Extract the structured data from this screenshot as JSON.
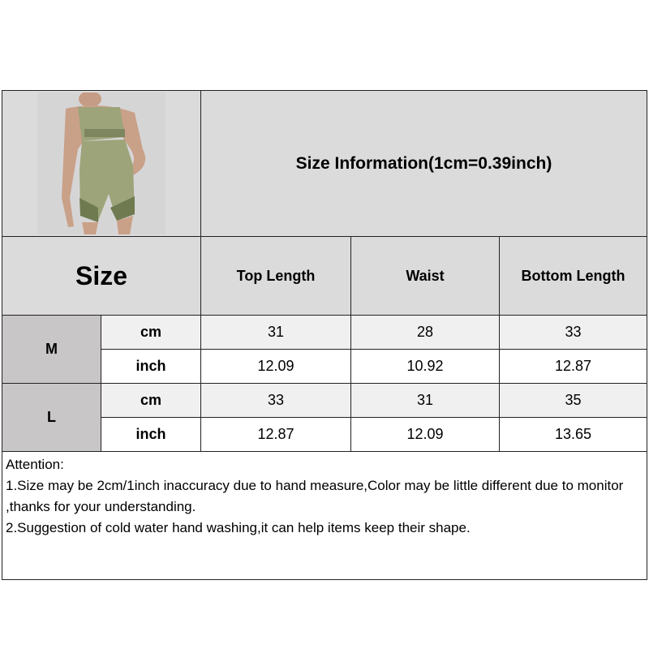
{
  "title": "Size Information(1cm=0.39inch)",
  "size_label": "Size",
  "columns": [
    "Top Length",
    "Waist",
    "Bottom Length"
  ],
  "rows": [
    {
      "size": "M",
      "cm_label": "cm",
      "inch_label": "inch",
      "cm": [
        "31",
        "28",
        "33"
      ],
      "inch": [
        "12.09",
        "10.92",
        "12.87"
      ]
    },
    {
      "size": "L",
      "cm_label": "cm",
      "inch_label": "inch",
      "cm": [
        "33",
        "31",
        "35"
      ],
      "inch": [
        "12.87",
        "12.09",
        "13.65"
      ]
    }
  ],
  "notes": {
    "heading": "Attention:",
    "items": [
      "1.Size may be 2cm/1inch inaccuracy due to hand measure,Color may be little different due to monitor ,thanks for your understanding.",
      "2.Suggestion of cold water hand washing,it can help items keep their shape."
    ]
  },
  "colors": {
    "header_bg": "#dcdbdc",
    "size_cell_bg": "#c8c6c6",
    "cm_row_bg": "#f0f0f0",
    "product_green": "#9da47a"
  }
}
